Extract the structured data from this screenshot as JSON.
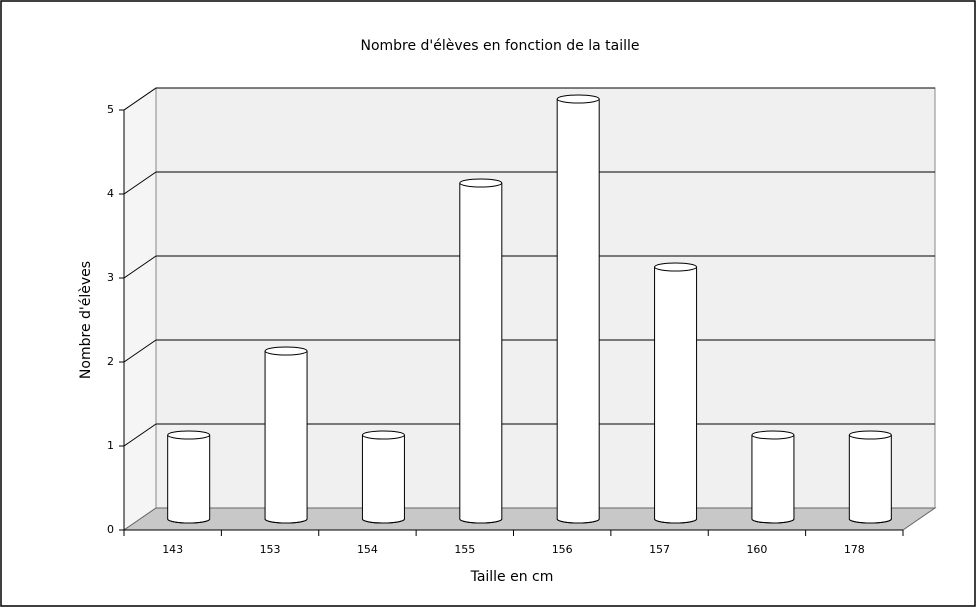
{
  "chart_data": {
    "type": "bar3d",
    "title": "Nombre d'élèves en fonction de la taille",
    "x_label": "Taille en cm",
    "y_label": "Nombre d'élèves",
    "categories": [
      "143",
      "153",
      "154",
      "155",
      "156",
      "157",
      "160",
      "178"
    ],
    "values": [
      1,
      2,
      1,
      4,
      5,
      3,
      1,
      1
    ],
    "color": "#ffffff",
    "ylim": [
      0,
      5
    ],
    "yticks": [
      0,
      1,
      2,
      3,
      4,
      5
    ],
    "grid": true
  }
}
